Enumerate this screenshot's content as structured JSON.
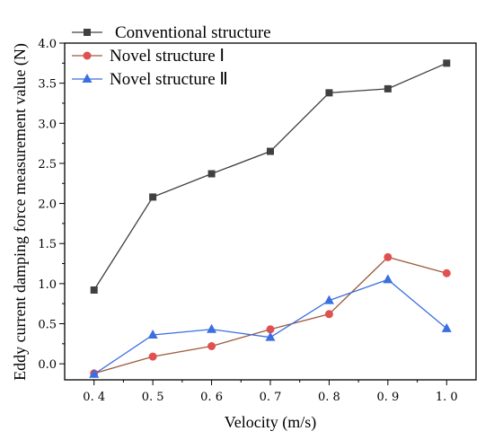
{
  "chart_data": {
    "type": "line",
    "xlabel": "Velocity (m/s)",
    "ylabel": "Eddy current damping force measurement value (N)",
    "x": [
      0.4,
      0.5,
      0.6,
      0.7,
      0.8,
      0.9,
      1.0
    ],
    "xticks": [
      "0. 4",
      "0. 5",
      "0. 6",
      "0. 7",
      "0. 8",
      "0. 9",
      "1. 0"
    ],
    "yticks": [
      "0.0",
      "0.5",
      "1.0",
      "1.5",
      "2.0",
      "2.5",
      "3.0",
      "3.5",
      "4.0"
    ],
    "xlim": [
      0.35,
      1.05
    ],
    "ylim": [
      -0.2,
      4.0
    ],
    "legend_position": "top-left",
    "series": [
      {
        "name": "Conventional structure",
        "marker": "square",
        "color": "#404040",
        "values": [
          0.92,
          2.08,
          2.37,
          2.65,
          3.38,
          3.43,
          3.75
        ]
      },
      {
        "name": "Novel structure Ⅰ",
        "marker": "circle",
        "color": "#e05050",
        "line_color": "#9c5a3c",
        "values": [
          -0.12,
          0.09,
          0.22,
          0.43,
          0.62,
          1.33,
          1.13
        ]
      },
      {
        "name": "Novel structure Ⅱ",
        "marker": "triangle",
        "color": "#3a6fe0",
        "values": [
          -0.13,
          0.36,
          0.43,
          0.33,
          0.79,
          1.05,
          0.44
        ]
      }
    ]
  }
}
